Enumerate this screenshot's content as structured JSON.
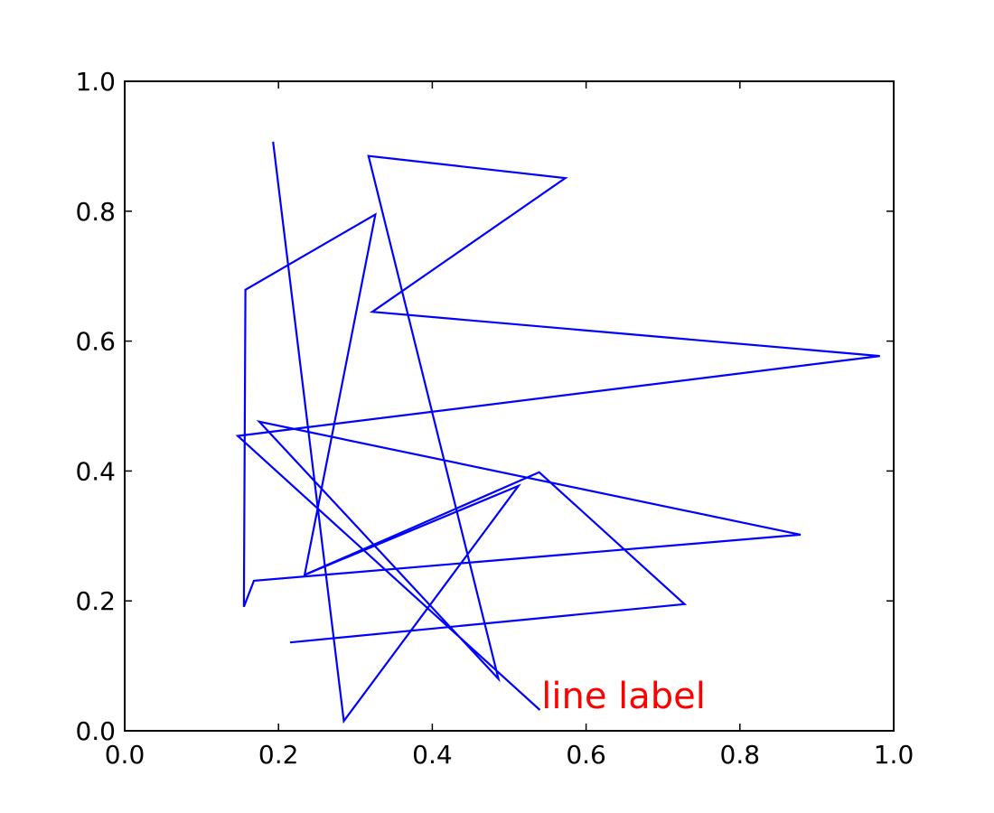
{
  "chart_data": {
    "type": "line",
    "title": "",
    "xlabel": "",
    "ylabel": "",
    "xlim": [
      0.0,
      1.0
    ],
    "ylim": [
      0.0,
      1.0
    ],
    "grid": false,
    "x_tick_labels": [
      "0.0",
      "0.2",
      "0.4",
      "0.6",
      "0.8",
      "1.0"
    ],
    "y_tick_labels": [
      "0.0",
      "0.2",
      "0.4",
      "0.6",
      "0.8",
      "1.0"
    ],
    "series": [
      {
        "color": "#0000ff",
        "x": [
          0.193,
          0.285,
          0.512,
          0.234,
          0.326,
          0.157,
          0.155,
          0.168,
          0.879,
          0.175,
          0.486,
          0.317,
          0.573,
          0.322,
          0.982,
          0.147,
          0.54
        ],
        "y": [
          0.907,
          0.015,
          0.377,
          0.24,
          0.795,
          0.679,
          0.191,
          0.231,
          0.302,
          0.476,
          0.08,
          0.885,
          0.851,
          0.645,
          0.577,
          0.454,
          0.032
        ]
      },
      {
        "color": "#0000ff",
        "x": [
          0.234,
          0.539,
          0.728,
          0.215
        ],
        "y": [
          0.24,
          0.398,
          0.195,
          0.136
        ]
      }
    ],
    "annotations": [
      {
        "text": "line label",
        "x": 0.542,
        "y": 0.035,
        "color": "#ff0000"
      }
    ]
  }
}
